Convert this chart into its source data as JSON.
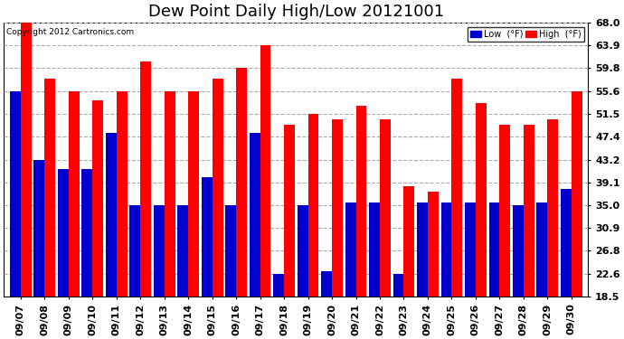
{
  "title": "Dew Point Daily High/Low 20121001",
  "copyright": "Copyright 2012 Cartronics.com",
  "dates": [
    "09/07",
    "09/08",
    "09/09",
    "09/10",
    "09/11",
    "09/12",
    "09/13",
    "09/14",
    "09/15",
    "09/16",
    "09/17",
    "09/18",
    "09/19",
    "09/20",
    "09/21",
    "09/22",
    "09/23",
    "09/24",
    "09/25",
    "09/26",
    "09/27",
    "09/28",
    "09/29",
    "09/30"
  ],
  "high_vals": [
    68.0,
    57.9,
    55.6,
    54.0,
    55.6,
    61.0,
    55.6,
    55.6,
    57.9,
    59.8,
    63.9,
    49.5,
    51.5,
    50.5,
    53.0,
    50.5,
    38.5,
    37.5,
    57.9,
    53.5,
    49.5,
    49.5,
    50.5,
    55.6
  ],
  "low_vals": [
    55.6,
    43.2,
    41.5,
    41.5,
    48.0,
    35.0,
    35.0,
    35.0,
    40.0,
    35.0,
    48.0,
    22.6,
    35.0,
    23.0,
    35.5,
    35.5,
    22.6,
    35.5,
    35.5,
    35.5,
    35.5,
    35.0,
    35.5,
    38.0
  ],
  "high_color": "#ff0000",
  "low_color": "#0000cc",
  "bg_color": "#ffffff",
  "grid_color": "#aaaaaa",
  "ymin": 18.5,
  "ymax": 68.0,
  "yticks": [
    18.5,
    22.6,
    26.8,
    30.9,
    35.0,
    39.1,
    43.2,
    47.4,
    51.5,
    55.6,
    59.8,
    63.9,
    68.0
  ],
  "title_fontsize": 13,
  "tick_fontsize": 8,
  "legend_label_low": "Low  (°F)",
  "legend_label_high": "High  (°F)"
}
